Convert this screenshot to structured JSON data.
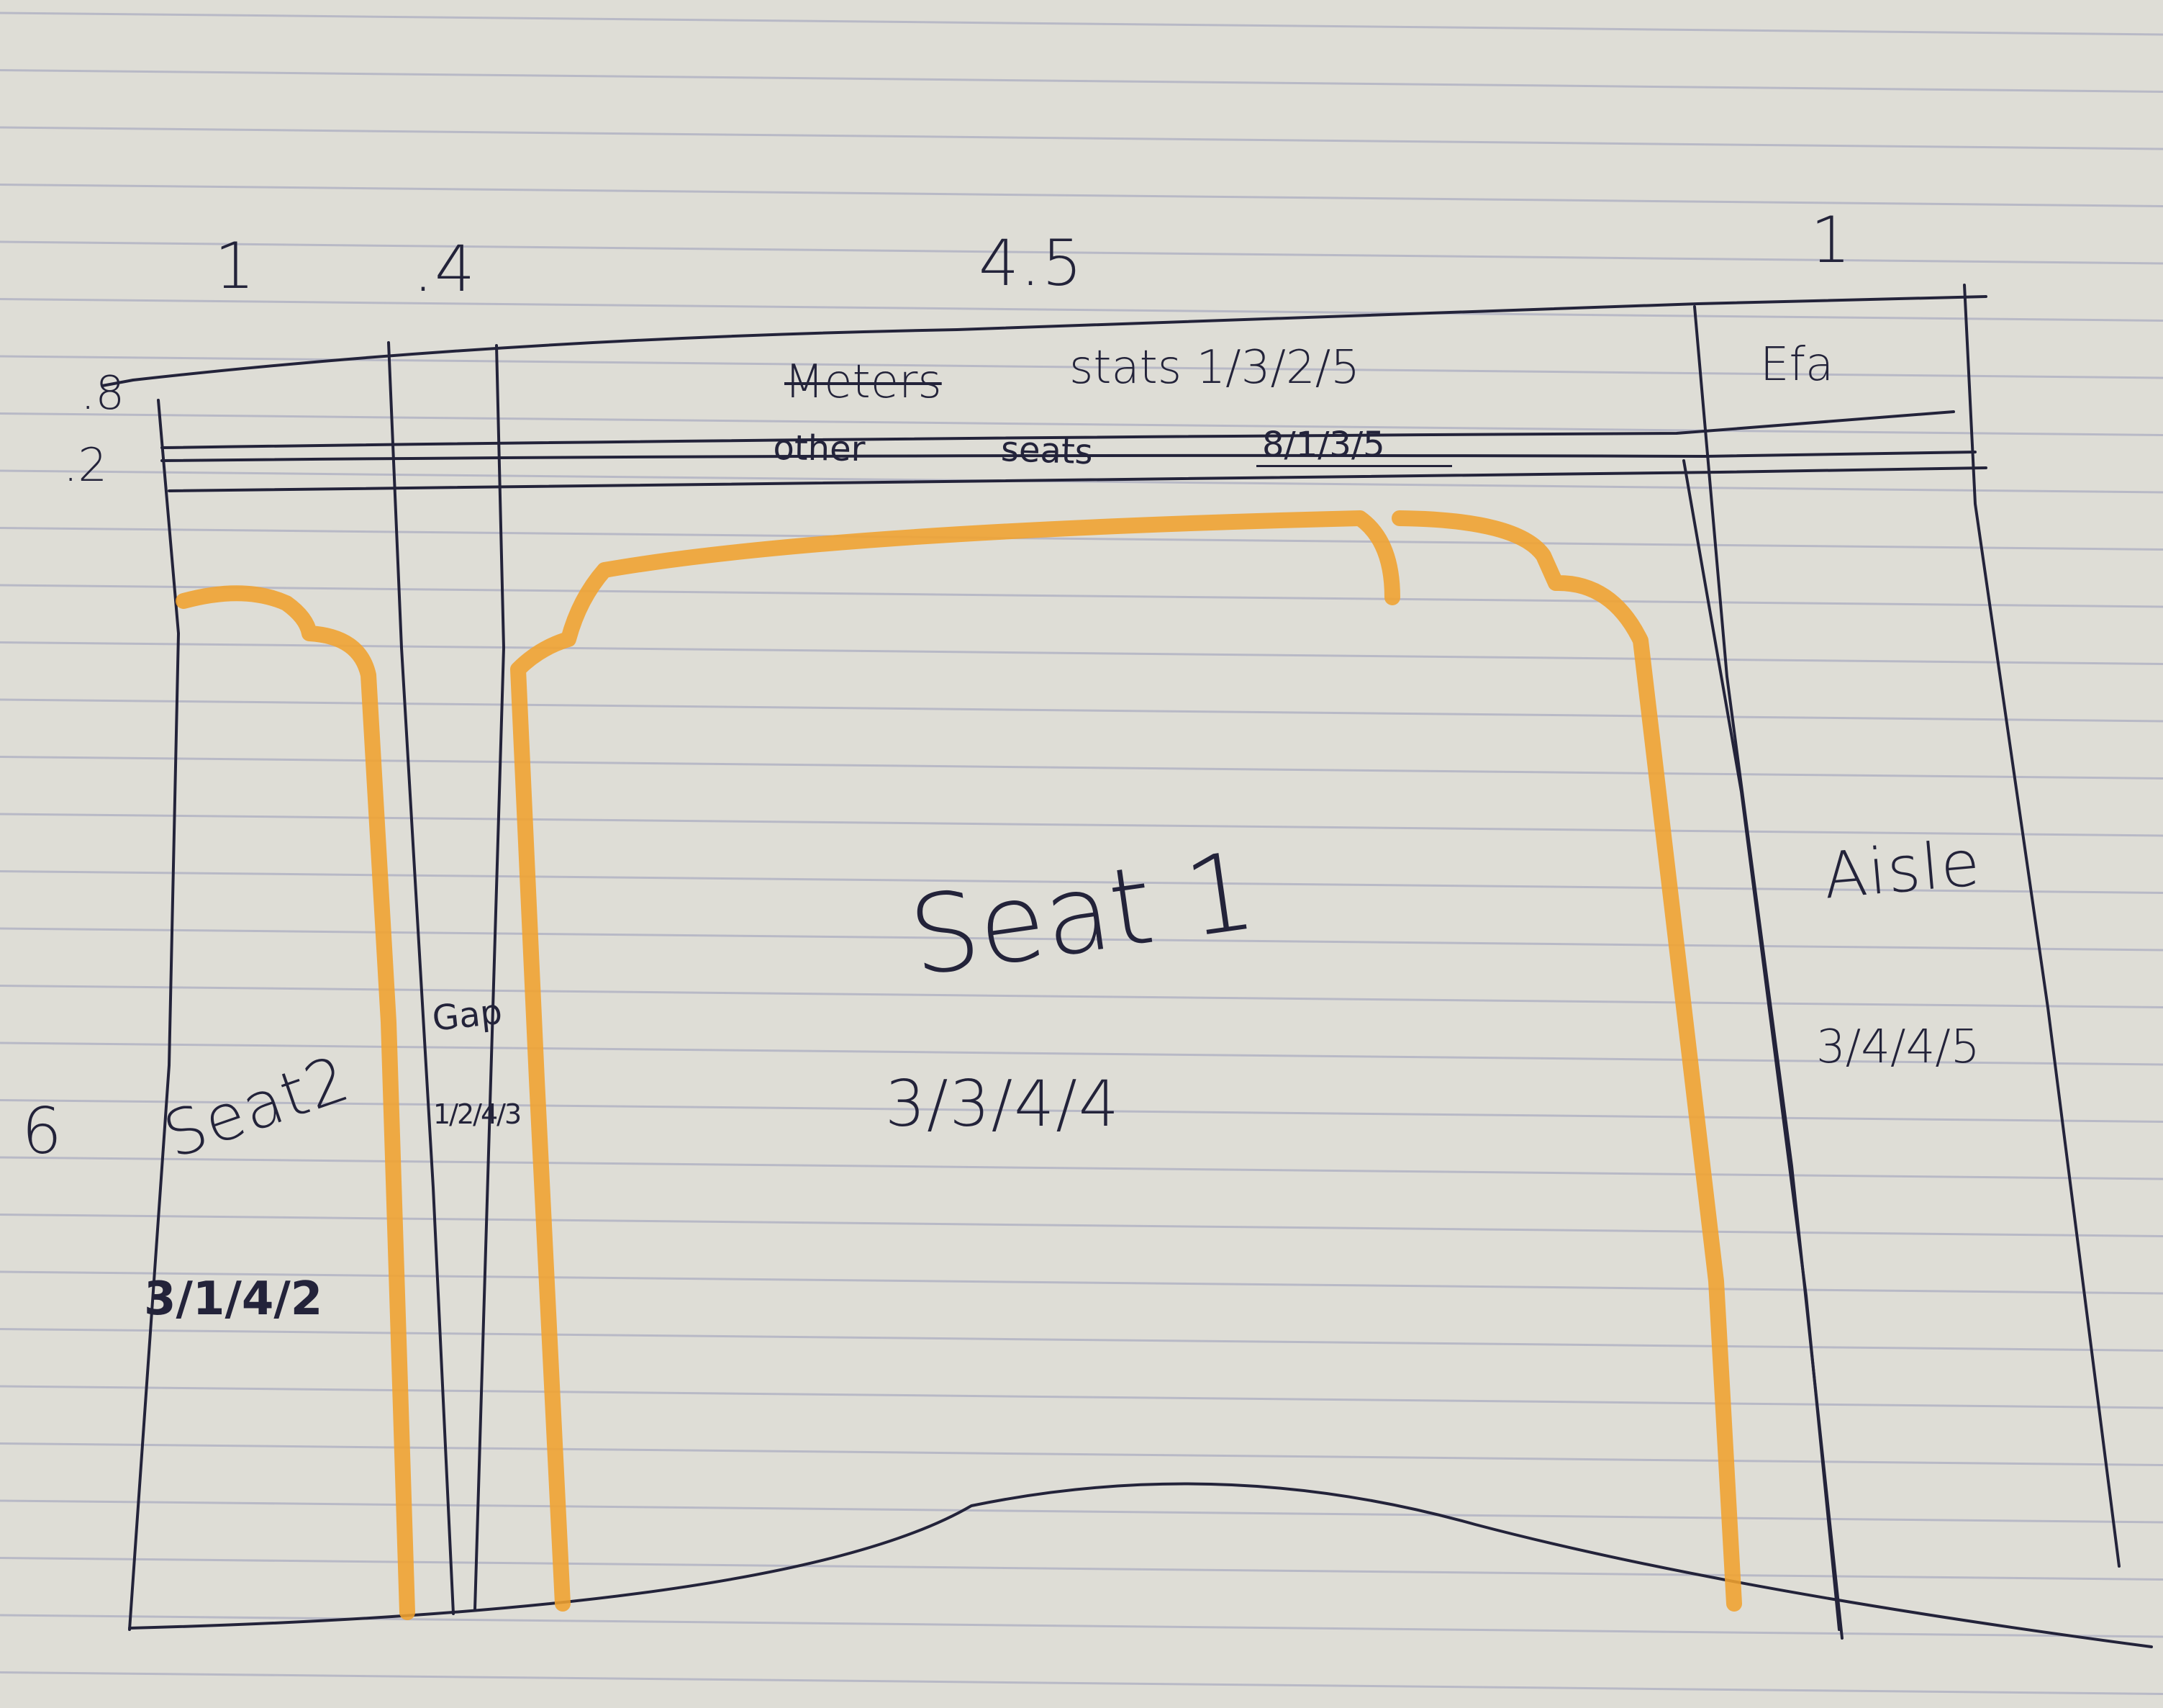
{
  "colors": {
    "paper": "#deddd6",
    "rule_line": "#b8b9c6",
    "ink": "#23233a",
    "marker": "#f0a22f"
  },
  "width_labels": [
    "1",
    ".4",
    "4.5",
    "1"
  ],
  "height_labels": [
    ".8",
    ".2",
    "6"
  ],
  "header": {
    "crossed_out": "Meters",
    "title": "stats 1/3/2/5",
    "side_label": "Efa"
  },
  "subheader": {
    "left": "other",
    "middle": "seats",
    "value": "8/1/3/5"
  },
  "areas": [
    {
      "name": "Seat2",
      "stats": "3/1/4/2"
    },
    {
      "name": "Gap",
      "stats": "1/2/4/3"
    },
    {
      "name": "Seat 1",
      "stats": "3/3/4/4"
    },
    {
      "name": "Aisle",
      "stats": "3/4/4/5"
    }
  ]
}
